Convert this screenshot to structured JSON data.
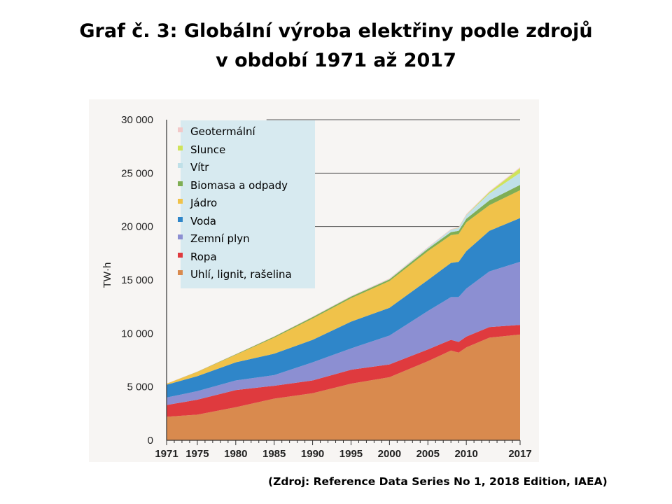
{
  "title_line1": "Graf č. 3: Globální výroba elektřiny podle zdrojů",
  "title_line2": "v období 1971 až 2017",
  "source": "(Zdroj: Reference Data Series No 1, 2018 Edition, IAEA)",
  "colors": {
    "coal": "#d98a4e",
    "oil": "#df3a3e",
    "gas": "#8c8fd2",
    "hydro": "#2f86c9",
    "nuclear": "#f0c24a",
    "biomass": "#7fae54",
    "wind": "#bfe0e8",
    "solar": "#cfe35a",
    "geothermal": "#f2c9c9"
  },
  "chart_data": {
    "type": "area",
    "stacked": true,
    "xlabel": "",
    "ylabel": "TW·h",
    "ylim": [
      0,
      30000
    ],
    "xlim": [
      1971,
      2017
    ],
    "x_ticks": [
      "1971",
      "1975",
      "1980",
      "1985",
      "1990",
      "1995",
      "2000",
      "2005",
      "2010",
      "2017"
    ],
    "y_ticks": [
      "0",
      "5 000",
      "10 000",
      "15 000",
      "20 000",
      "25 000",
      "30 000"
    ],
    "grid": "horizontal lines at 20000, 25000 and 30000",
    "legend_position": "top-left",
    "x": [
      1971,
      1975,
      1980,
      1985,
      1990,
      1995,
      2000,
      2005,
      2008,
      2009,
      2010,
      2013,
      2017
    ],
    "series": [
      {
        "name": "Uhlí, lignit, rašelina",
        "color_key": "coal",
        "values": [
          2200,
          2400,
          3100,
          3900,
          4400,
          5300,
          5900,
          7400,
          8400,
          8200,
          8700,
          9600,
          9900
        ]
      },
      {
        "name": "Ropa",
        "color_key": "oil",
        "values": [
          1100,
          1400,
          1600,
          1200,
          1200,
          1300,
          1200,
          1100,
          1000,
          1000,
          1000,
          1000,
          900
        ]
      },
      {
        "name": "Zemní plyn",
        "color_key": "gas",
        "values": [
          700,
          800,
          900,
          1000,
          1700,
          2000,
          2700,
          3600,
          4000,
          4200,
          4500,
          5200,
          5900
        ]
      },
      {
        "name": "Voda",
        "color_key": "hydro",
        "values": [
          1200,
          1400,
          1700,
          2000,
          2100,
          2500,
          2600,
          2900,
          3200,
          3300,
          3500,
          3800,
          4100
        ]
      },
      {
        "name": "Jádro",
        "color_key": "nuclear",
        "values": [
          100,
          400,
          700,
          1500,
          2000,
          2200,
          2500,
          2700,
          2600,
          2600,
          2700,
          2400,
          2600
        ]
      },
      {
        "name": "Biomasa a odpady",
        "color_key": "biomass",
        "values": [
          0,
          20,
          50,
          100,
          130,
          150,
          160,
          220,
          280,
          300,
          330,
          450,
          500
        ]
      },
      {
        "name": "Vítr",
        "color_key": "wind",
        "values": [
          0,
          0,
          0,
          0,
          5,
          10,
          30,
          100,
          220,
          270,
          340,
          640,
          1130
        ]
      },
      {
        "name": "Slunce",
        "color_key": "solar",
        "values": [
          0,
          0,
          0,
          0,
          0,
          0,
          1,
          2,
          10,
          20,
          30,
          140,
          440
        ]
      },
      {
        "name": "Geotermální",
        "color_key": "geothermal",
        "values": [
          10,
          15,
          25,
          35,
          40,
          45,
          50,
          55,
          60,
          65,
          70,
          75,
          85
        ]
      }
    ]
  }
}
